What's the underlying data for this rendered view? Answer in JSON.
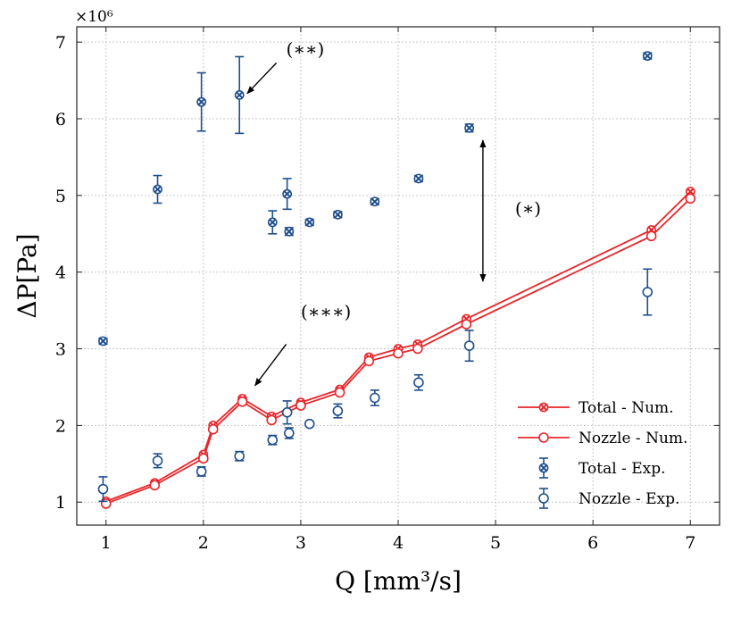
{
  "chart_data": {
    "type": "scatter",
    "title": "",
    "xlabel": "Q [mm³/s]",
    "ylabel": "ΔP[Pa]",
    "y_multiplier": "×10⁶",
    "xlim": [
      0.7,
      7.3
    ],
    "ylim": [
      0.7,
      7.2
    ],
    "x_ticks": [
      1,
      2,
      3,
      4,
      5,
      6,
      7
    ],
    "y_ticks": [
      1,
      2,
      3,
      4,
      5,
      6,
      7
    ],
    "grid": true,
    "legend_position": "bottom-right",
    "colors": {
      "numerical": "#e8262b",
      "experimental": "#1f4e8c",
      "annotation": "#000000"
    },
    "series": [
      {
        "name": "Total - Num.",
        "style": "line-x-marker",
        "x": [
          1.0,
          1.5,
          2.0,
          2.1,
          2.4,
          2.7,
          3.0,
          3.4,
          3.7,
          4.0,
          4.2,
          4.7,
          6.6,
          7.0
        ],
        "y": [
          1.01,
          1.25,
          1.62,
          2.0,
          2.35,
          2.12,
          2.3,
          2.47,
          2.89,
          3.0,
          3.06,
          3.39,
          4.55,
          5.05
        ]
      },
      {
        "name": "Nozzle - Num.",
        "style": "line-circle-marker",
        "x": [
          1.0,
          1.5,
          2.0,
          2.1,
          2.4,
          2.7,
          3.0,
          3.4,
          3.7,
          4.0,
          4.2,
          4.7,
          6.6,
          7.0
        ],
        "y": [
          0.98,
          1.22,
          1.57,
          1.95,
          2.31,
          2.07,
          2.26,
          2.43,
          2.84,
          2.94,
          3.0,
          3.32,
          4.47,
          4.96
        ]
      },
      {
        "name": "Total - Exp.",
        "style": "errorbar-x-marker",
        "x": [
          0.97,
          1.53,
          1.98,
          2.37,
          2.71,
          2.86,
          2.88,
          3.09,
          3.38,
          3.76,
          4.21,
          4.73,
          6.56
        ],
        "y": [
          3.1,
          5.08,
          6.22,
          6.31,
          4.65,
          5.02,
          4.53,
          4.65,
          4.75,
          4.92,
          5.22,
          5.88,
          6.82
        ],
        "err": [
          0.04,
          0.18,
          0.38,
          0.5,
          0.15,
          0.2,
          0.05,
          0.04,
          0.04,
          0.04,
          0.04,
          0.05,
          0.04
        ]
      },
      {
        "name": "Nozzle - Exp.",
        "style": "errorbar-circle-marker",
        "x": [
          0.97,
          1.53,
          1.98,
          2.37,
          2.71,
          2.86,
          2.88,
          3.09,
          3.38,
          3.76,
          4.21,
          4.73,
          6.56
        ],
        "y": [
          1.17,
          1.54,
          1.4,
          1.6,
          1.81,
          2.17,
          1.9,
          2.02,
          2.19,
          2.36,
          2.56,
          3.04,
          3.74
        ],
        "err": [
          0.16,
          0.09,
          0.06,
          0.06,
          0.06,
          0.15,
          0.07,
          0.03,
          0.09,
          0.1,
          0.1,
          0.2,
          0.3
        ]
      }
    ],
    "annotations": [
      {
        "text": "(∗∗)",
        "text_x": 2.85,
        "text_y": 6.83,
        "arrow_from": [
          2.75,
          6.73
        ],
        "arrow_to": [
          2.45,
          6.33
        ]
      },
      {
        "text": "(∗∗∗)",
        "text_x": 3.0,
        "text_y": 3.4,
        "arrow_from": [
          2.85,
          3.06
        ],
        "arrow_to": [
          2.53,
          2.52
        ]
      },
      {
        "text": "(∗)",
        "text_x": 5.2,
        "text_y": 2.0,
        "text_y_data": 4.75,
        "double_arrow": [
          [
            4.87,
            5.72
          ],
          [
            4.87,
            3.88
          ]
        ]
      }
    ]
  }
}
